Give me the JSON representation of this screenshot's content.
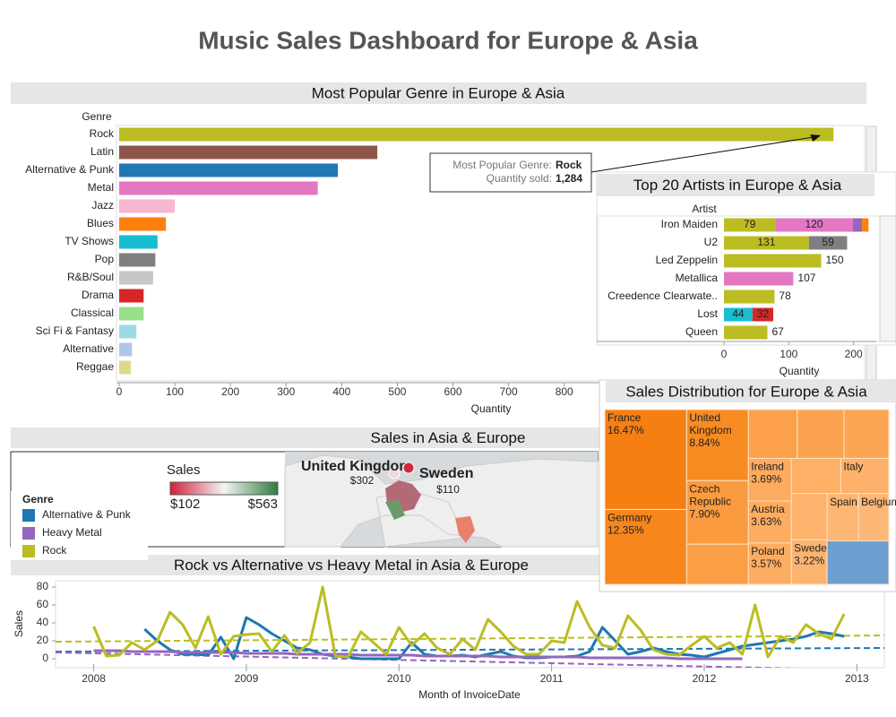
{
  "title": "Music Sales Dashboard for Europe & Asia",
  "chart_data": [
    {
      "type": "bar",
      "orientation": "horizontal",
      "title": "Most Popular Genre in Europe & Asia",
      "y_label": "Genre",
      "x_label": "Quantity",
      "categories": [
        "Rock",
        "Latin",
        "Alternative & Punk",
        "Metal",
        "Jazz",
        "Blues",
        "TV Shows",
        "Pop",
        "R&B/Soul",
        "Drama",
        "Classical",
        "Sci Fi & Fantasy",
        "Alternative",
        "Reggae"
      ],
      "values": [
        1284,
        464,
        393,
        357,
        100,
        84,
        69,
        65,
        61,
        44,
        44,
        31,
        23,
        21
      ],
      "colors": [
        "#bcbd22",
        "#8c564b",
        "#1f77b4",
        "#e377c2",
        "#f7b6d2",
        "#ff7f0e",
        "#17becf",
        "#7f7f7f",
        "#c7c7c7",
        "#d62728",
        "#98df8a",
        "#9edae5",
        "#aec7e8",
        "#dbdb8d"
      ],
      "xlim": [
        0,
        1340
      ],
      "xticks": [
        0,
        100,
        200,
        300,
        400,
        500,
        600,
        700,
        800
      ],
      "annotation": [
        {
          "label": "Most Popular Genre:",
          "value": "Rock"
        },
        {
          "label": "Quantity sold:",
          "value": "1,284"
        }
      ]
    },
    {
      "type": "stacked_bar",
      "orientation": "horizontal",
      "title": "Top 20 Artists in Europe & Asia",
      "y_label": "Artist",
      "x_label": "Quantity",
      "categories": [
        "Iron Maiden",
        "U2",
        "Led Zeppelin",
        "Metallica",
        "Creedence Clearwate..",
        "Lost",
        "Queen"
      ],
      "series": [
        {
          "name": "Rock",
          "color": "#bcbd22",
          "values": [
            79,
            131,
            150,
            null,
            78,
            null,
            67
          ]
        },
        {
          "name": "Metal",
          "color": "#e377c2",
          "values": [
            120,
            null,
            null,
            107,
            null,
            null,
            null
          ]
        },
        {
          "name": "Heavy Metal",
          "color": "#9467bd",
          "values": [
            14,
            null,
            null,
            null,
            null,
            null,
            null
          ]
        },
        {
          "name": "Blues",
          "color": "#ff7f0e",
          "values": [
            10,
            null,
            null,
            null,
            null,
            null,
            null
          ]
        },
        {
          "name": "Pop",
          "color": "#7f7f7f",
          "values": [
            null,
            59,
            null,
            null,
            null,
            null,
            null
          ]
        },
        {
          "name": "TV Shows",
          "color": "#17becf",
          "values": [
            null,
            null,
            null,
            null,
            null,
            44,
            null
          ]
        },
        {
          "name": "Drama",
          "color": "#d62728",
          "values": [
            null,
            null,
            null,
            null,
            null,
            32,
            null
          ]
        }
      ],
      "xlim": [
        0,
        235
      ],
      "xticks": [
        0,
        100,
        200
      ]
    },
    {
      "type": "map",
      "title": "Sales in Asia & Europe",
      "legend_title": "Sales",
      "scale": [
        {
          "value": 102,
          "label": "$102"
        },
        {
          "value": 563,
          "label": "$563"
        }
      ],
      "scale_colors": [
        "#d0213b",
        "#f4f4f4",
        "#2e7d3e"
      ],
      "categories": [
        "United Kingdom",
        "Sweden"
      ],
      "values": [
        302,
        110
      ],
      "value_labels": [
        "$302",
        "$110"
      ]
    },
    {
      "type": "treemap",
      "title": "Sales Distribution for Europe & Asia",
      "categories": [
        "France",
        "Germany",
        "United Kingdom",
        "Czech Republic",
        null,
        null,
        null,
        null,
        "Ireland",
        "Austria",
        "Poland",
        null,
        "Italy",
        null,
        "Sweden",
        "Spain",
        "Belgium",
        null
      ],
      "values": [
        16.47,
        12.35,
        8.84,
        7.9,
        5.0,
        4.8,
        4.6,
        4.4,
        3.69,
        3.63,
        3.57,
        3.5,
        3.4,
        3.33,
        3.22,
        3.0,
        2.9,
        5.4
      ],
      "value_labels": [
        "16.47%",
        "12.35%",
        "8.84%",
        "7.90%",
        null,
        null,
        null,
        null,
        "3.69%",
        "3.63%",
        "3.57%",
        null,
        null,
        null,
        "3.22%",
        null,
        null,
        null
      ],
      "colors": [
        "#f57f13",
        "#f7861d",
        "#f88b22",
        "#fb9b3f",
        "#fb9f46",
        "#fca14a",
        "#fca34f",
        "#fca552",
        "#fdab5e",
        "#fdac60",
        "#fdad61",
        "#fdb066",
        "#fdb16a",
        "#fdb36c",
        "#fdb46f",
        "#fdb673",
        "#fdb877",
        "#6d9fd1"
      ]
    },
    {
      "type": "line",
      "title": "Rock vs Alternative vs Heavy Metal in Asia & Europe",
      "legend_title": "Genre",
      "y_label": "Sales",
      "x_label": "Month of InvoiceDate",
      "x": [
        2008,
        2008.083,
        2008.167,
        2008.25,
        2008.333,
        2008.417,
        2008.5,
        2008.583,
        2008.667,
        2008.75,
        2008.833,
        2008.917,
        2009,
        2009.083,
        2009.167,
        2009.25,
        2009.333,
        2009.417,
        2009.5,
        2009.583,
        2009.667,
        2009.75,
        2009.833,
        2009.917,
        2010,
        2010.083,
        2010.167,
        2010.25,
        2010.333,
        2010.417,
        2010.5,
        2010.583,
        2010.667,
        2010.75,
        2010.833,
        2010.917,
        2011,
        2011.083,
        2011.167,
        2011.25,
        2011.333,
        2011.417,
        2011.5,
        2011.583,
        2011.667,
        2011.75,
        2011.833,
        2011.917,
        2012,
        2012.083,
        2012.167,
        2012.25,
        2012.333,
        2012.417,
        2012.5,
        2012.583,
        2012.667,
        2012.75,
        2012.833,
        2012.917
      ],
      "series": [
        {
          "name": "Alternative & Punk",
          "color": "#1f77b4",
          "trend": [
            8,
            12
          ],
          "values": [
            null,
            null,
            null,
            null,
            33,
            20,
            10,
            5,
            5,
            4,
            24,
            0,
            46,
            38,
            28,
            20,
            12,
            10,
            5,
            3,
            2,
            0,
            0,
            0,
            0,
            18,
            5,
            3,
            3,
            4,
            2,
            5,
            8,
            3,
            1,
            1,
            2,
            2,
            3,
            8,
            35,
            20,
            5,
            8,
            12,
            8,
            5,
            4,
            2,
            6,
            10,
            14,
            16,
            18,
            20,
            22,
            25,
            30,
            28,
            25
          ]
        },
        {
          "name": "Heavy Metal",
          "color": "#9467bd",
          "trend": [
            7,
            -13
          ],
          "values": [
            9,
            9,
            9,
            8,
            8,
            8,
            8,
            7,
            7,
            7,
            7,
            7,
            6,
            6,
            6,
            6,
            5,
            5,
            5,
            5,
            5,
            4,
            4,
            4,
            4,
            4,
            3,
            3,
            3,
            3,
            3,
            3,
            2,
            2,
            2,
            2,
            2,
            2,
            2,
            1,
            1,
            1,
            1,
            1,
            1,
            1,
            0,
            0,
            0,
            0,
            0,
            0,
            null,
            null,
            null,
            null,
            null,
            null,
            null,
            null
          ]
        },
        {
          "name": "Rock",
          "color": "#bcbd22",
          "trend": [
            19,
            26
          ],
          "values": [
            36,
            3,
            4,
            18,
            10,
            20,
            52,
            38,
            12,
            47,
            5,
            25,
            27,
            28,
            8,
            26,
            6,
            18,
            80,
            3,
            2,
            30,
            18,
            5,
            35,
            15,
            28,
            12,
            5,
            22,
            10,
            44,
            30,
            14,
            5,
            5,
            20,
            18,
            64,
            35,
            15,
            12,
            48,
            32,
            10,
            5,
            4,
            15,
            25,
            12,
            18,
            5,
            60,
            2,
            25,
            18,
            38,
            28,
            22,
            50
          ]
        }
      ],
      "xlim": [
        2007.75,
        2013.18
      ],
      "xticks": [
        2008,
        2009,
        2010,
        2011,
        2012,
        2013
      ],
      "ylim": [
        -10,
        87
      ],
      "yticks": [
        0,
        20,
        40,
        60,
        80
      ]
    }
  ]
}
